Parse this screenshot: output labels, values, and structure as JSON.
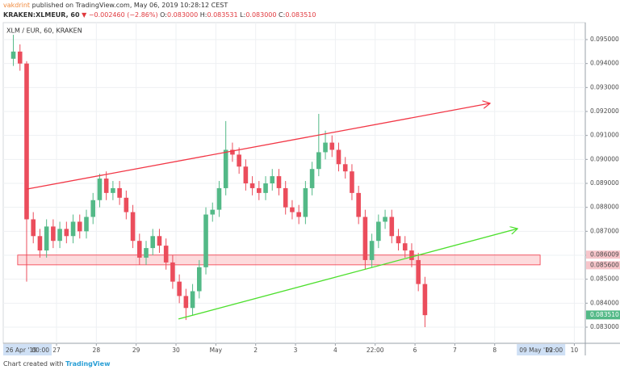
{
  "header": {
    "author": "vakdrint",
    "published": "published on TradingView.com, May 06, 2019 10:28:12 CEST",
    "symbol": "KRAKEN:XLMEUR, 60",
    "direction": "▼",
    "change": "−0.002460 (−2.86%)",
    "ohlc": [
      {
        "label": "O:",
        "value": "0.083000"
      },
      {
        "label": "H:",
        "value": "0.083531"
      },
      {
        "label": "L:",
        "value": "0.083000"
      },
      {
        "label": "C:",
        "value": "0.083510"
      }
    ]
  },
  "footer": {
    "text": "Chart created with",
    "brand": "TradingView"
  },
  "chart_data": {
    "type": "candlestick",
    "title": "XLM / EUR, 60, KRAKEN",
    "up_color": "#53b987",
    "down_color": "#eb4d5c",
    "grid": true,
    "x": [
      -2,
      2,
      6,
      10,
      14,
      18,
      22,
      26,
      30,
      34,
      38,
      42,
      46,
      50,
      54,
      58,
      62,
      66,
      70,
      74,
      78,
      82,
      86,
      90,
      94,
      98,
      102,
      106,
      110,
      114,
      118,
      122,
      126,
      130,
      134,
      138,
      142,
      146,
      150,
      154,
      158,
      162,
      166,
      170,
      174,
      178,
      182,
      186,
      190,
      194,
      198,
      202,
      206,
      210,
      214,
      218,
      222,
      226,
      230,
      234,
      238,
      242,
      246
    ],
    "open": [
      0.0942,
      0.0945,
      0.094,
      0.0875,
      0.0868,
      0.0862,
      0.0872,
      0.0866,
      0.0871,
      0.0868,
      0.0874,
      0.087,
      0.0876,
      0.0883,
      0.0892,
      0.0886,
      0.0888,
      0.0884,
      0.0878,
      0.0866,
      0.0859,
      0.0863,
      0.0868,
      0.0864,
      0.0857,
      0.0849,
      0.0843,
      0.0838,
      0.0845,
      0.0855,
      0.0877,
      0.0879,
      0.0888,
      0.0904,
      0.0902,
      0.0897,
      0.089,
      0.0888,
      0.0886,
      0.089,
      0.0893,
      0.0888,
      0.088,
      0.0878,
      0.0876,
      0.0888,
      0.0896,
      0.0903,
      0.0907,
      0.0904,
      0.0898,
      0.0895,
      0.0886,
      0.0876,
      0.0858,
      0.0866,
      0.0874,
      0.0876,
      0.0868,
      0.0865,
      0.0862,
      0.0858,
      0.0848
    ],
    "high": [
      0.0952,
      0.0948,
      0.0941,
      0.0878,
      0.0871,
      0.0875,
      0.0875,
      0.0874,
      0.0874,
      0.0877,
      0.0877,
      0.0879,
      0.0886,
      0.0894,
      0.0895,
      0.0891,
      0.0891,
      0.0887,
      0.0881,
      0.0869,
      0.0866,
      0.0871,
      0.0871,
      0.0867,
      0.086,
      0.0852,
      0.0846,
      0.0848,
      0.0858,
      0.088,
      0.0882,
      0.0891,
      0.0916,
      0.0907,
      0.0905,
      0.09,
      0.0893,
      0.0891,
      0.0893,
      0.0896,
      0.0896,
      0.0891,
      0.0883,
      0.0881,
      0.0891,
      0.0899,
      0.0919,
      0.0912,
      0.091,
      0.0907,
      0.0901,
      0.0898,
      0.0889,
      0.0879,
      0.0869,
      0.0877,
      0.0879,
      0.0879,
      0.0871,
      0.0868,
      0.0865,
      0.0861,
      0.0851
    ],
    "low": [
      0.0939,
      0.0937,
      0.0849,
      0.0865,
      0.0859,
      0.0859,
      0.0863,
      0.0863,
      0.0865,
      0.0865,
      0.0867,
      0.0867,
      0.0873,
      0.088,
      0.0883,
      0.0883,
      0.0881,
      0.0875,
      0.0863,
      0.0856,
      0.0856,
      0.086,
      0.0861,
      0.0854,
      0.0846,
      0.084,
      0.0833,
      0.0835,
      0.0842,
      0.0852,
      0.0874,
      0.0876,
      0.0885,
      0.0899,
      0.0894,
      0.0887,
      0.0885,
      0.0883,
      0.0883,
      0.0887,
      0.0885,
      0.0877,
      0.0875,
      0.0873,
      0.0873,
      0.0885,
      0.0893,
      0.09,
      0.0901,
      0.0895,
      0.0892,
      0.0883,
      0.0873,
      0.0854,
      0.0855,
      0.0863,
      0.0871,
      0.0865,
      0.0862,
      0.0859,
      0.0855,
      0.0845,
      0.083
    ],
    "close": [
      0.0945,
      0.094,
      0.0875,
      0.0868,
      0.0862,
      0.0872,
      0.0866,
      0.0871,
      0.0868,
      0.0874,
      0.087,
      0.0876,
      0.0883,
      0.0892,
      0.0886,
      0.0888,
      0.0884,
      0.0878,
      0.0866,
      0.0859,
      0.0863,
      0.0868,
      0.0864,
      0.0857,
      0.0849,
      0.0843,
      0.0838,
      0.0845,
      0.0855,
      0.0877,
      0.0879,
      0.0888,
      0.0904,
      0.0902,
      0.0897,
      0.089,
      0.0888,
      0.0886,
      0.089,
      0.0893,
      0.0888,
      0.088,
      0.0878,
      0.0876,
      0.0888,
      0.0896,
      0.0903,
      0.0907,
      0.0904,
      0.0898,
      0.0895,
      0.0886,
      0.0876,
      0.0858,
      0.0866,
      0.0874,
      0.0876,
      0.0868,
      0.0865,
      0.0862,
      0.0858,
      0.0848,
      0.0835
    ],
    "xlim": [
      -8.1,
      342.6
    ],
    "ylim": [
      0.082326,
      0.095708
    ],
    "xticks": [
      {
        "value": 24,
        "label": "27"
      },
      {
        "value": 48,
        "label": "28"
      },
      {
        "value": 72,
        "label": "29"
      },
      {
        "value": 96,
        "label": "30"
      },
      {
        "value": 120,
        "label": "May"
      },
      {
        "value": 144,
        "label": "2"
      },
      {
        "value": 168,
        "label": "3"
      },
      {
        "value": 192,
        "label": "4"
      },
      {
        "value": 216,
        "label": "22:00"
      },
      {
        "value": 240,
        "label": "6"
      },
      {
        "value": 264,
        "label": "7"
      },
      {
        "value": 288,
        "label": "8"
      },
      {
        "value": 336,
        "label": "10"
      }
    ],
    "date_markers": [
      {
        "value": 0,
        "date": "26 Apr '19",
        "time": "00:00"
      },
      {
        "value": 314,
        "date": "09 May '19",
        "time": "02:00"
      }
    ],
    "yticks": [
      {
        "value": 0.083,
        "label": "0.083000"
      },
      {
        "value": 0.084,
        "label": "0.084000"
      },
      {
        "value": 0.085,
        "label": "0.085000"
      },
      {
        "value": 0.086,
        "label": "0.086000"
      },
      {
        "value": 0.087,
        "label": "0.087000"
      },
      {
        "value": 0.088,
        "label": "0.088000"
      },
      {
        "value": 0.089,
        "label": "0.089000"
      },
      {
        "value": 0.09,
        "label": "0.090000"
      },
      {
        "value": 0.091,
        "label": "0.091000"
      },
      {
        "value": 0.092,
        "label": "0.092000"
      },
      {
        "value": 0.093,
        "label": "0.093000"
      },
      {
        "value": 0.094,
        "label": "0.094000"
      },
      {
        "value": 0.095,
        "label": "0.095000"
      }
    ],
    "trendlines": [
      {
        "color": "#f23645",
        "x": [
          6,
          285.2
        ],
        "y": [
          0.08876,
          0.09234
        ]
      },
      {
        "color": "#4cdf2c",
        "x": [
          97.5,
          301.8
        ],
        "y": [
          0.08334,
          0.08711
        ]
      }
    ],
    "zone": {
      "x": [
        0.6,
        315.4
      ],
      "top": 0.086009,
      "bottom": {
        "value": 0.0856,
        "label": "0.085600"
      },
      "color": "#f23645"
    },
    "last_price": {
      "value": 0.08351,
      "label": "0.083510"
    }
  }
}
